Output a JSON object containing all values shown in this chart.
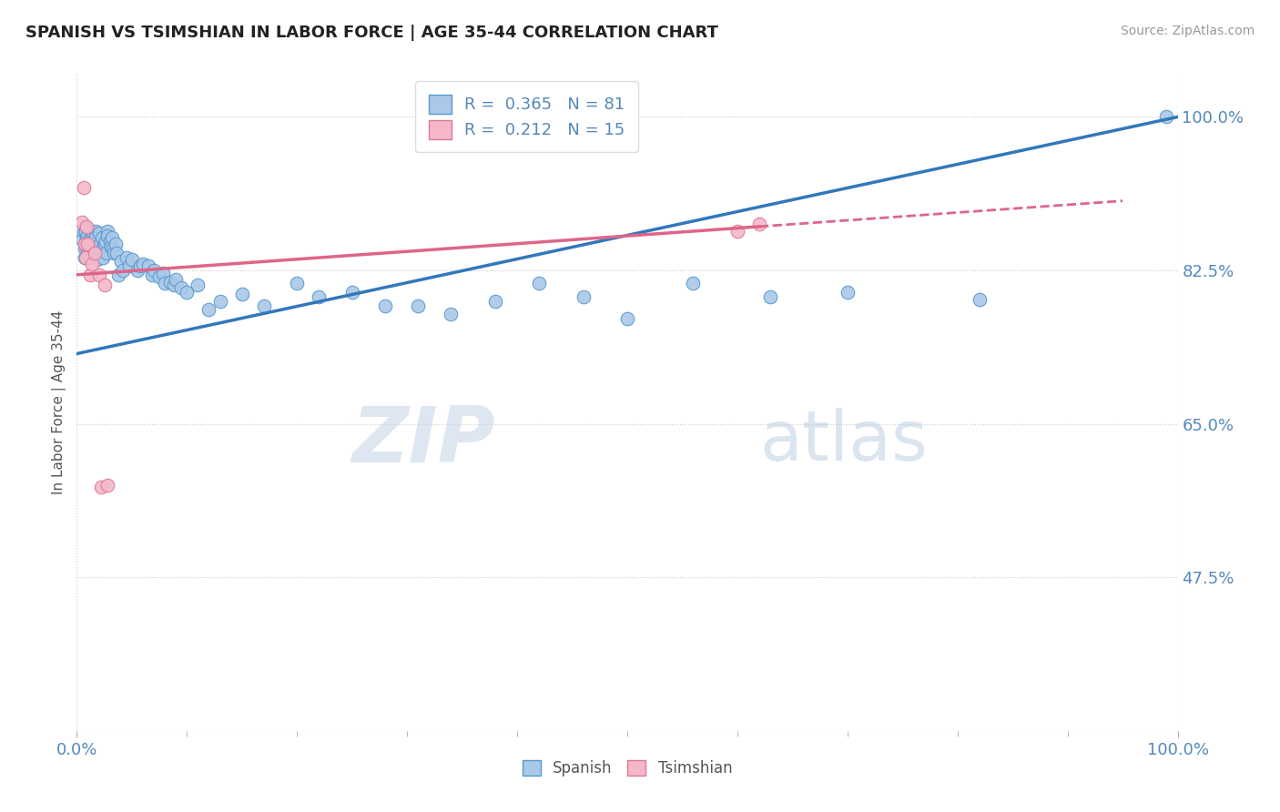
{
  "title": "SPANISH VS TSIMSHIAN IN LABOR FORCE | AGE 35-44 CORRELATION CHART",
  "source_text": "Source: ZipAtlas.com",
  "ylabel": "In Labor Force | Age 35-44",
  "xlim": [
    0.0,
    1.0
  ],
  "ylim": [
    0.3,
    1.05
  ],
  "yticks": [
    0.475,
    0.65,
    0.825,
    1.0
  ],
  "ytick_labels": [
    "47.5%",
    "65.0%",
    "82.5%",
    "100.0%"
  ],
  "xtick_labels": [
    "0.0%",
    "100.0%"
  ],
  "xticks": [
    0.0,
    1.0
  ],
  "r_spanish": 0.365,
  "n_spanish": 81,
  "r_tsimshian": 0.212,
  "n_tsimshian": 15,
  "color_spanish_fill": "#aac8e8",
  "color_tsimshian_fill": "#f5b8c8",
  "color_spanish_edge": "#5599cc",
  "color_tsimshian_edge": "#dd7799",
  "color_spanish_line": "#3377bb",
  "color_tsimshian_line": "#dd6688",
  "legend_label_spanish": "Spanish",
  "legend_label_tsimshian": "Tsimshian",
  "background_color": "#ffffff",
  "grid_color": "#cccccc",
  "title_color": "#222222",
  "axis_label_color": "#5588bb",
  "watermark_zip": "ZIP",
  "watermark_atlas": "atlas",
  "spanish_x": [
    0.005,
    0.006,
    0.007,
    0.007,
    0.008,
    0.008,
    0.008,
    0.009,
    0.009,
    0.01,
    0.01,
    0.01,
    0.011,
    0.012,
    0.013,
    0.013,
    0.014,
    0.015,
    0.015,
    0.016,
    0.017,
    0.017,
    0.018,
    0.019,
    0.02,
    0.021,
    0.022,
    0.023,
    0.024,
    0.025,
    0.026,
    0.027,
    0.028,
    0.028,
    0.03,
    0.031,
    0.032,
    0.033,
    0.034,
    0.035,
    0.036,
    0.038,
    0.04,
    0.042,
    0.045,
    0.048,
    0.05,
    0.055,
    0.058,
    0.06,
    0.065,
    0.068,
    0.07,
    0.075,
    0.078,
    0.08,
    0.085,
    0.088,
    0.09,
    0.095,
    0.1,
    0.11,
    0.12,
    0.13,
    0.15,
    0.17,
    0.2,
    0.22,
    0.25,
    0.28,
    0.31,
    0.34,
    0.38,
    0.42,
    0.46,
    0.5,
    0.56,
    0.63,
    0.7,
    0.82,
    0.99
  ],
  "spanish_y": [
    0.86,
    0.87,
    0.85,
    0.84,
    0.875,
    0.87,
    0.855,
    0.862,
    0.858,
    0.865,
    0.85,
    0.845,
    0.86,
    0.84,
    0.86,
    0.855,
    0.87,
    0.858,
    0.852,
    0.848,
    0.87,
    0.862,
    0.845,
    0.838,
    0.868,
    0.855,
    0.848,
    0.862,
    0.84,
    0.855,
    0.858,
    0.845,
    0.87,
    0.865,
    0.858,
    0.852,
    0.862,
    0.85,
    0.845,
    0.855,
    0.845,
    0.82,
    0.835,
    0.825,
    0.84,
    0.83,
    0.838,
    0.825,
    0.83,
    0.832,
    0.83,
    0.82,
    0.825,
    0.818,
    0.822,
    0.81,
    0.812,
    0.808,
    0.815,
    0.805,
    0.8,
    0.808,
    0.78,
    0.79,
    0.798,
    0.785,
    0.81,
    0.795,
    0.8,
    0.785,
    0.785,
    0.775,
    0.79,
    0.81,
    0.795,
    0.77,
    0.81,
    0.795,
    0.8,
    0.792,
    1.0
  ],
  "tsimshian_x": [
    0.005,
    0.006,
    0.007,
    0.008,
    0.009,
    0.01,
    0.012,
    0.014,
    0.016,
    0.02,
    0.022,
    0.025,
    0.028,
    0.6,
    0.62
  ],
  "tsimshian_y": [
    0.88,
    0.92,
    0.855,
    0.84,
    0.875,
    0.855,
    0.82,
    0.832,
    0.845,
    0.82,
    0.578,
    0.808,
    0.58,
    0.87,
    0.878
  ]
}
